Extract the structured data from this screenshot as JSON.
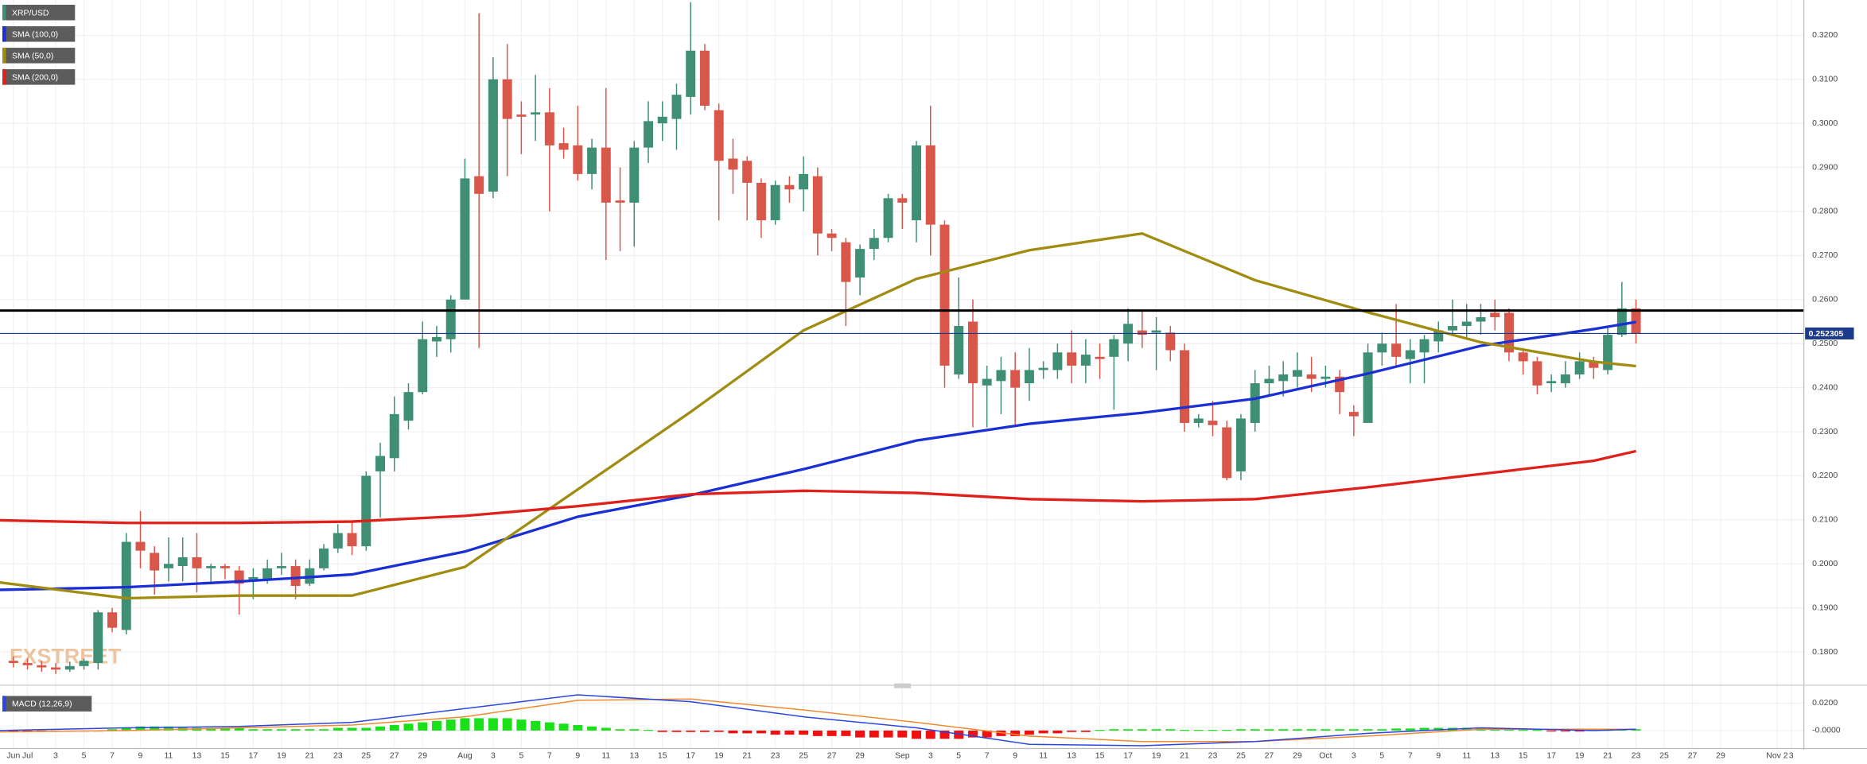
{
  "chart_data": [
    {
      "type": "candlestick",
      "name": "XRP/USD",
      "watermark": "FXSTREET",
      "up_color": "#3f8f74",
      "down_color": "#d9574a",
      "xlim": [
        -0.95,
        126.9
      ],
      "ylim": [
        0.173,
        0.328
      ],
      "xticks": [
        {
          "value": 0,
          "label": "Jun"
        },
        {
          "value": 1,
          "label": "Jul"
        },
        {
          "value": 3,
          "label": "3"
        },
        {
          "value": 5,
          "label": "5"
        },
        {
          "value": 7,
          "label": "7"
        },
        {
          "value": 9,
          "label": "9"
        },
        {
          "value": 11,
          "label": "11"
        },
        {
          "value": 13,
          "label": "13"
        },
        {
          "value": 15,
          "label": "15"
        },
        {
          "value": 17,
          "label": "17"
        },
        {
          "value": 19,
          "label": "19"
        },
        {
          "value": 21,
          "label": "21"
        },
        {
          "value": 23,
          "label": "23"
        },
        {
          "value": 25,
          "label": "25"
        },
        {
          "value": 27,
          "label": "27"
        },
        {
          "value": 29,
          "label": "29"
        },
        {
          "value": 32,
          "label": "Aug"
        },
        {
          "value": 34,
          "label": "3"
        },
        {
          "value": 36,
          "label": "5"
        },
        {
          "value": 38,
          "label": "7"
        },
        {
          "value": 40,
          "label": "9"
        },
        {
          "value": 42,
          "label": "11"
        },
        {
          "value": 44,
          "label": "13"
        },
        {
          "value": 46,
          "label": "15"
        },
        {
          "value": 48,
          "label": "17"
        },
        {
          "value": 50,
          "label": "19"
        },
        {
          "value": 52,
          "label": "21"
        },
        {
          "value": 54,
          "label": "23"
        },
        {
          "value": 56,
          "label": "25"
        },
        {
          "value": 58,
          "label": "27"
        },
        {
          "value": 60,
          "label": "29"
        },
        {
          "value": 63,
          "label": "Sep"
        },
        {
          "value": 65,
          "label": "3"
        },
        {
          "value": 67,
          "label": "5"
        },
        {
          "value": 69,
          "label": "7"
        },
        {
          "value": 71,
          "label": "9"
        },
        {
          "value": 73,
          "label": "11"
        },
        {
          "value": 75,
          "label": "13"
        },
        {
          "value": 77,
          "label": "15"
        },
        {
          "value": 79,
          "label": "17"
        },
        {
          "value": 81,
          "label": "19"
        },
        {
          "value": 83,
          "label": "21"
        },
        {
          "value": 85,
          "label": "23"
        },
        {
          "value": 87,
          "label": "25"
        },
        {
          "value": 89,
          "label": "27"
        },
        {
          "value": 91,
          "label": "29"
        },
        {
          "value": 93,
          "label": "Oct"
        },
        {
          "value": 95,
          "label": "3"
        },
        {
          "value": 97,
          "label": "5"
        },
        {
          "value": 99,
          "label": "7"
        },
        {
          "value": 101,
          "label": "9"
        },
        {
          "value": 103,
          "label": "11"
        },
        {
          "value": 105,
          "label": "13"
        },
        {
          "value": 107,
          "label": "15"
        },
        {
          "value": 109,
          "label": "17"
        },
        {
          "value": 111,
          "label": "19"
        },
        {
          "value": 113,
          "label": "21"
        },
        {
          "value": 115,
          "label": "23"
        },
        {
          "value": 117,
          "label": "25"
        },
        {
          "value": 119,
          "label": "27"
        },
        {
          "value": 121,
          "label": "29"
        },
        {
          "value": 125,
          "label": "Nov 2"
        },
        {
          "value": 126,
          "label": "3"
        }
      ],
      "yticks": [
        {
          "value": 0.18,
          "label": "0.1800"
        },
        {
          "value": 0.19,
          "label": "0.1900"
        },
        {
          "value": 0.2,
          "label": "0.2000"
        },
        {
          "value": 0.21,
          "label": "0.2100"
        },
        {
          "value": 0.22,
          "label": "0.2200"
        },
        {
          "value": 0.23,
          "label": "0.2300"
        },
        {
          "value": 0.24,
          "label": "0.2400"
        },
        {
          "value": 0.25,
          "label": "0.2500"
        },
        {
          "value": 0.26,
          "label": "0.2600"
        },
        {
          "value": 0.27,
          "label": "0.2700"
        },
        {
          "value": 0.28,
          "label": "0.2800"
        },
        {
          "value": 0.29,
          "label": "0.2900"
        },
        {
          "value": 0.3,
          "label": "0.3000"
        },
        {
          "value": 0.31,
          "label": "0.3100"
        },
        {
          "value": 0.32,
          "label": "0.3200"
        }
      ],
      "grid": true,
      "x": [
        0,
        1,
        2,
        3,
        4,
        5,
        6,
        7,
        8,
        9,
        10,
        11,
        12,
        13,
        14,
        15,
        16,
        17,
        18,
        19,
        20,
        21,
        22,
        23,
        24,
        25,
        26,
        27,
        28,
        29,
        30,
        31,
        32,
        33,
        34,
        35,
        36,
        37,
        38,
        39,
        40,
        41,
        42,
        43,
        44,
        45,
        46,
        47,
        48,
        49,
        50,
        51,
        52,
        53,
        54,
        55,
        56,
        57,
        58,
        59,
        60,
        61,
        62,
        63,
        64,
        65,
        66,
        67,
        68,
        69,
        70,
        71,
        72,
        73,
        74,
        75,
        76,
        77,
        78,
        79,
        80,
        81,
        82,
        83,
        84,
        85,
        86,
        87,
        88,
        89,
        90,
        91,
        92,
        93,
        94,
        95,
        96,
        97,
        98,
        99,
        100,
        101,
        102,
        103,
        104,
        105,
        106,
        107,
        108,
        109,
        110,
        111,
        112,
        113,
        114,
        115
      ],
      "open": [
        0.178,
        0.1775,
        0.177,
        0.1765,
        0.176,
        0.1768,
        0.1775,
        0.189,
        0.185,
        0.205,
        0.2025,
        0.199,
        0.1995,
        0.2015,
        0.199,
        0.1995,
        0.1985,
        0.196,
        0.1965,
        0.199,
        0.1995,
        0.1955,
        0.199,
        0.2035,
        0.207,
        0.204,
        0.221,
        0.224,
        0.2325,
        0.239,
        0.2505,
        0.251,
        0.26,
        0.288,
        0.2845,
        0.31,
        0.302,
        0.302,
        0.3025,
        0.2955,
        0.295,
        0.2885,
        0.2945,
        0.2825,
        0.282,
        0.2945,
        0.3,
        0.301,
        0.306,
        0.3165,
        0.303,
        0.292,
        0.2915,
        0.2865,
        0.278,
        0.286,
        0.285,
        0.288,
        0.275,
        0.273,
        0.265,
        0.2715,
        0.274,
        0.283,
        0.278,
        0.295,
        0.277,
        0.243,
        0.255,
        0.2405,
        0.2415,
        0.244,
        0.241,
        0.244,
        0.244,
        0.248,
        0.245,
        0.247,
        0.247,
        0.25,
        0.253,
        0.2525,
        0.2525,
        0.2485,
        0.232,
        0.2325,
        0.231,
        0.221,
        0.232,
        0.241,
        0.2415,
        0.2425,
        0.243,
        0.242,
        0.2425,
        0.2345,
        0.232,
        0.248,
        0.25,
        0.2465,
        0.248,
        0.2505,
        0.253,
        0.254,
        0.255,
        0.257,
        0.257,
        0.248,
        0.246,
        0.241,
        0.241,
        0.243,
        0.246,
        0.244,
        0.252,
        0.258
      ],
      "high": [
        0.179,
        0.1785,
        0.178,
        0.1775,
        0.1778,
        0.1785,
        0.1895,
        0.19,
        0.207,
        0.212,
        0.204,
        0.206,
        0.206,
        0.207,
        0.2,
        0.2,
        0.1995,
        0.199,
        0.201,
        0.2025,
        0.201,
        0.201,
        0.2045,
        0.209,
        0.2095,
        0.221,
        0.2275,
        0.238,
        0.241,
        0.255,
        0.254,
        0.261,
        0.292,
        0.325,
        0.315,
        0.318,
        0.305,
        0.311,
        0.308,
        0.299,
        0.304,
        0.2965,
        0.308,
        0.29,
        0.296,
        0.305,
        0.305,
        0.309,
        0.3275,
        0.318,
        0.3045,
        0.2965,
        0.2925,
        0.2875,
        0.287,
        0.288,
        0.2925,
        0.29,
        0.276,
        0.274,
        0.2725,
        0.276,
        0.284,
        0.284,
        0.296,
        0.304,
        0.278,
        0.265,
        0.26,
        0.245,
        0.247,
        0.248,
        0.249,
        0.246,
        0.25,
        0.253,
        0.251,
        0.25,
        0.252,
        0.258,
        0.2575,
        0.256,
        0.254,
        0.25,
        0.234,
        0.237,
        0.2325,
        0.234,
        0.244,
        0.245,
        0.246,
        0.248,
        0.247,
        0.245,
        0.244,
        0.236,
        0.25,
        0.2525,
        0.259,
        0.251,
        0.252,
        0.255,
        0.26,
        0.259,
        0.259,
        0.26,
        0.258,
        0.249,
        0.247,
        0.243,
        0.246,
        0.248,
        0.247,
        0.254,
        0.264,
        0.26
      ],
      "low": [
        0.1765,
        0.176,
        0.1755,
        0.175,
        0.1755,
        0.176,
        0.176,
        0.1845,
        0.184,
        0.199,
        0.193,
        0.196,
        0.196,
        0.1935,
        0.196,
        0.1965,
        0.1885,
        0.192,
        0.1955,
        0.1975,
        0.192,
        0.195,
        0.1985,
        0.2025,
        0.202,
        0.203,
        0.2105,
        0.221,
        0.2305,
        0.2385,
        0.247,
        0.248,
        0.26,
        0.249,
        0.283,
        0.288,
        0.293,
        0.296,
        0.28,
        0.292,
        0.287,
        0.285,
        0.269,
        0.271,
        0.272,
        0.291,
        0.296,
        0.294,
        0.302,
        0.303,
        0.278,
        0.284,
        0.278,
        0.274,
        0.277,
        0.282,
        0.28,
        0.27,
        0.271,
        0.254,
        0.261,
        0.269,
        0.273,
        0.276,
        0.273,
        0.27,
        0.24,
        0.242,
        0.231,
        0.231,
        0.234,
        0.231,
        0.237,
        0.242,
        0.242,
        0.241,
        0.241,
        0.242,
        0.235,
        0.246,
        0.249,
        0.244,
        0.246,
        0.23,
        0.231,
        0.229,
        0.219,
        0.219,
        0.23,
        0.238,
        0.238,
        0.24,
        0.239,
        0.24,
        0.234,
        0.229,
        0.232,
        0.245,
        0.245,
        0.241,
        0.241,
        0.248,
        0.252,
        0.251,
        0.252,
        0.253,
        0.246,
        0.243,
        0.2385,
        0.239,
        0.24,
        0.242,
        0.242,
        0.243,
        0.2515,
        0.25
      ],
      "close": [
        0.1775,
        0.177,
        0.1765,
        0.176,
        0.1768,
        0.178,
        0.189,
        0.1855,
        0.205,
        0.203,
        0.1985,
        0.2,
        0.2015,
        0.199,
        0.1995,
        0.199,
        0.1955,
        0.197,
        0.199,
        0.1995,
        0.195,
        0.199,
        0.2035,
        0.207,
        0.204,
        0.22,
        0.2245,
        0.234,
        0.239,
        0.251,
        0.2515,
        0.26,
        0.2875,
        0.284,
        0.31,
        0.301,
        0.3015,
        0.3025,
        0.295,
        0.294,
        0.2885,
        0.2945,
        0.282,
        0.282,
        0.2945,
        0.3005,
        0.3015,
        0.3065,
        0.3165,
        0.304,
        0.2915,
        0.2895,
        0.2865,
        0.278,
        0.286,
        0.285,
        0.2885,
        0.275,
        0.274,
        0.264,
        0.2715,
        0.274,
        0.283,
        0.282,
        0.295,
        0.277,
        0.245,
        0.254,
        0.241,
        0.242,
        0.244,
        0.24,
        0.244,
        0.2445,
        0.248,
        0.245,
        0.2475,
        0.2465,
        0.251,
        0.2545,
        0.252,
        0.253,
        0.2485,
        0.232,
        0.233,
        0.2315,
        0.2195,
        0.233,
        0.241,
        0.242,
        0.243,
        0.244,
        0.242,
        0.2425,
        0.239,
        0.2335,
        0.248,
        0.25,
        0.247,
        0.2485,
        0.251,
        0.253,
        0.254,
        0.255,
        0.256,
        0.256,
        0.248,
        0.246,
        0.2405,
        0.2415,
        0.243,
        0.246,
        0.2445,
        0.252,
        0.258,
        0.2523
      ],
      "series": [
        {
          "name": "SMA (100,0)",
          "color": "#1a2fd4",
          "x": [
            -1,
            8,
            16,
            24,
            32,
            40,
            48,
            56,
            64,
            72,
            80,
            88,
            96,
            104,
            112,
            115
          ],
          "values": [
            0.1941,
            0.1947,
            0.196,
            0.1976,
            0.2028,
            0.2107,
            0.2156,
            0.2215,
            0.228,
            0.2318,
            0.2343,
            0.2375,
            0.2432,
            0.2495,
            0.2533,
            0.2549
          ]
        },
        {
          "name": "SMA (50,0)",
          "color": "#a08c10",
          "x": [
            -1,
            8,
            16,
            24,
            32,
            40,
            48,
            56,
            64,
            72,
            80,
            88,
            96,
            104,
            112,
            115
          ],
          "values": [
            0.1958,
            0.1922,
            0.1928,
            0.1928,
            0.1993,
            0.2169,
            0.2345,
            0.253,
            0.2647,
            0.2712,
            0.275,
            0.2644,
            0.2571,
            0.2503,
            0.2459,
            0.2449
          ]
        },
        {
          "name": "SMA (200,0)",
          "color": "#e0201a",
          "x": [
            -1,
            8,
            16,
            24,
            32,
            40,
            48,
            56,
            64,
            72,
            80,
            88,
            96,
            104,
            112,
            115
          ],
          "values": [
            0.2099,
            0.2093,
            0.2093,
            0.2096,
            0.2109,
            0.2131,
            0.2158,
            0.2166,
            0.2161,
            0.2147,
            0.2142,
            0.2147,
            0.2174,
            0.2204,
            0.2234,
            0.2256
          ]
        }
      ],
      "hline": 0.2575,
      "last_price": 0.252305,
      "last_price_color": "#1b3a8c"
    },
    {
      "type": "macd",
      "name": "MACD (12,26,9)",
      "ylim": [
        -0.0113,
        0.0278
      ],
      "yticks": [
        {
          "value": 0.02,
          "label": "0.0200"
        },
        {
          "value": 0,
          "label": "-0.0000"
        }
      ],
      "positive_color": "#19e019",
      "negative_color": "#f01010",
      "histogram": [
        -0.0005,
        -0.0005,
        -0.0005,
        -0.0005,
        -0.0005,
        -0.0005,
        -0.0005,
        0.001,
        0.002,
        0.003,
        0.003,
        0.003,
        0.002,
        0.002,
        0.002,
        0.002,
        0.002,
        0.001,
        0.001,
        0.001,
        0.001,
        0.001,
        0.001,
        0.002,
        0.002,
        0.002,
        0.003,
        0.004,
        0.005,
        0.006,
        0.007,
        0.008,
        0.009,
        0.009,
        0.009,
        0.009,
        0.008,
        0.007,
        0.006,
        0.005,
        0.004,
        0.003,
        0.002,
        0.001,
        0.001,
        0.0005,
        -0.001,
        -0.001,
        -0.001,
        -0.001,
        -0.001,
        -0.002,
        -0.002,
        -0.002,
        -0.003,
        -0.003,
        -0.003,
        -0.004,
        -0.004,
        -0.004,
        -0.005,
        -0.005,
        -0.005,
        -0.005,
        -0.006,
        -0.006,
        -0.006,
        -0.006,
        -0.005,
        -0.005,
        -0.004,
        -0.004,
        -0.003,
        -0.002,
        -0.002,
        -0.001,
        -0.001,
        0.0005,
        0.001,
        0.001,
        0.001,
        0.001,
        0.001,
        0.0005,
        0.0005,
        0.0005,
        0.0005,
        0.001,
        0.001,
        0.001,
        0.001,
        0.001,
        0.001,
        0.001,
        0.001,
        0.001,
        0.001,
        0.001,
        0.0015,
        0.0015,
        0.002,
        0.002,
        0.002,
        0.002,
        0.002,
        0.0015,
        0.001,
        0.0005,
        0.0005,
        -0.0005,
        -0.0005,
        -0.0005,
        0.0005,
        0.0005,
        0.001,
        0.001
      ],
      "x": [
        -1,
        8,
        16,
        24,
        32,
        40,
        48,
        56,
        64,
        72,
        80,
        88,
        96,
        104,
        112,
        115
      ],
      "macd": {
        "color": "#2b45e0",
        "values": [
          0,
          0.002,
          0.003,
          0.006,
          0.016,
          0.026,
          0.021,
          0.01,
          0.002,
          -0.01,
          -0.011,
          -0.008,
          -0.002,
          0.002,
          0,
          0.001
        ]
      },
      "signal": {
        "color": "#f08a30",
        "values": [
          -0.001,
          0,
          0.002,
          0.004,
          0.01,
          0.022,
          0.023,
          0.015,
          0.006,
          -0.004,
          -0.008,
          -0.008,
          -0.004,
          0.001,
          0.001,
          0.001
        ]
      }
    }
  ]
}
